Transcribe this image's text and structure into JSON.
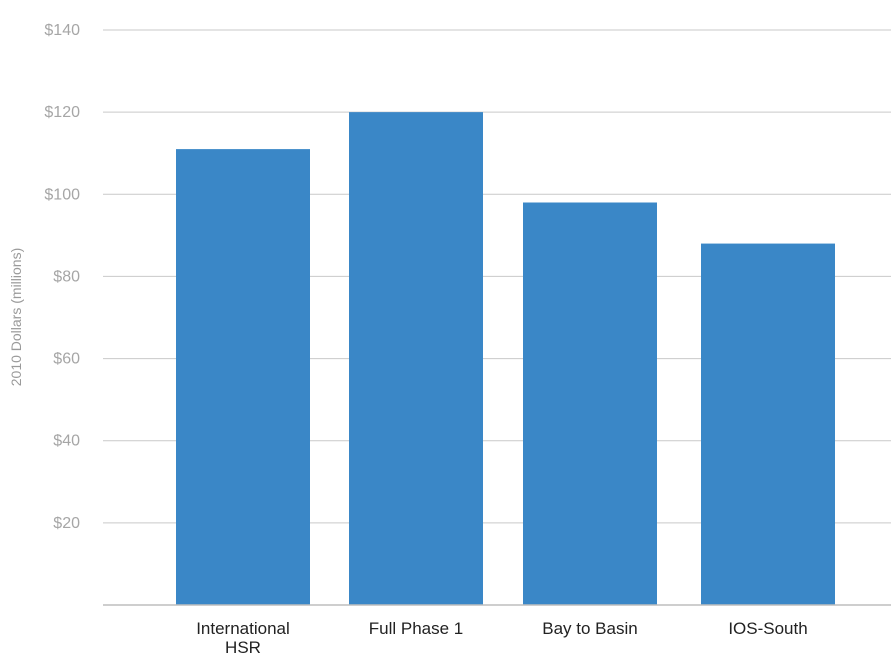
{
  "chart_data": {
    "type": "bar",
    "title": "",
    "xlabel": "",
    "ylabel": "2010 Dollars (millions)",
    "categories": [
      "International HSR",
      "Full Phase 1",
      "Bay to Basin",
      "IOS-South"
    ],
    "category_label_lines": [
      [
        "International",
        "HSR"
      ],
      [
        "Full Phase 1"
      ],
      [
        "Bay to Basin"
      ],
      [
        "IOS-South"
      ]
    ],
    "values": [
      111,
      120,
      98,
      88
    ],
    "ylim": [
      0,
      140
    ],
    "yticks": [
      20,
      40,
      60,
      80,
      100,
      120,
      140
    ],
    "ytick_labels": [
      "$20",
      "$40",
      "$60",
      "$80",
      "$100",
      "$120",
      "$140"
    ],
    "grid": true,
    "colors": {
      "bar": "#3a87c7",
      "grid": "#c9c9c9",
      "axis": "#bdbdbd",
      "tick_text": "#a6a6a6",
      "category_text": "#222222"
    }
  }
}
